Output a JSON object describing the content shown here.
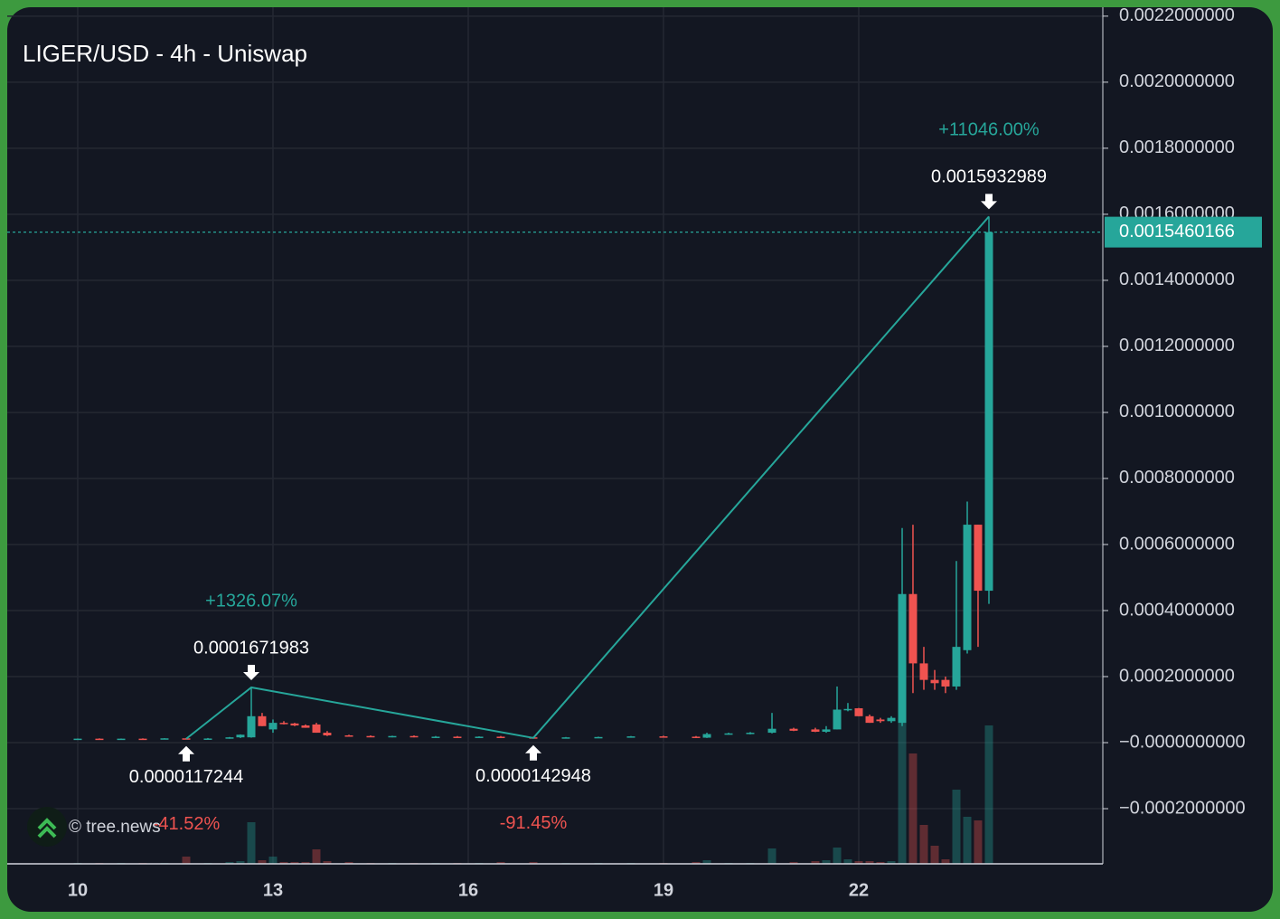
{
  "chart_data": {
    "type": "candlestick",
    "title": "LIGER/USD - 4h - Uniswap",
    "watermark": "© tree.news",
    "xlim": [
      8.917,
      25.75
    ],
    "xticks": [
      10,
      13,
      16,
      19,
      22
    ],
    "ylim": [
      -0.000367,
      0.002227
    ],
    "yticks": [
      {
        "value": 0.0022,
        "label": "0.0022000000"
      },
      {
        "value": 0.002,
        "label": "0.0020000000"
      },
      {
        "value": 0.0018,
        "label": "0.0018000000"
      },
      {
        "value": 0.0016,
        "label": "0.0016000000"
      },
      {
        "value": 0.0014,
        "label": "0.0014000000"
      },
      {
        "value": 0.0012,
        "label": "0.0012000000"
      },
      {
        "value": 0.001,
        "label": "0.0010000000"
      },
      {
        "value": 0.0008,
        "label": "0.0008000000"
      },
      {
        "value": 0.0006,
        "label": "0.0006000000"
      },
      {
        "value": 0.0004,
        "label": "0.0004000000"
      },
      {
        "value": 0.0002,
        "label": "0.0002000000"
      },
      {
        "value": 0,
        "label": "−0.0000000000"
      },
      {
        "value": -0.0002,
        "label": "−0.0002000000"
      }
    ],
    "grid": true,
    "up_color": "#26a69a",
    "down_color": "#ef5350",
    "last_price": 0.0015460166,
    "candles": [
      {
        "x": 10.0,
        "o": 1.15e-05,
        "h": 1.25e-05,
        "l": 1.1e-05,
        "c": 1.2e-05,
        "v": 1
      },
      {
        "x": 10.333,
        "o": 1.2e-05,
        "h": 1.3e-05,
        "l": 1.1e-05,
        "c": 1.15e-05,
        "v": 1
      },
      {
        "x": 10.667,
        "o": 1.15e-05,
        "h": 1.25e-05,
        "l": 1.1e-05,
        "c": 1.2e-05,
        "v": 1
      },
      {
        "x": 11.0,
        "o": 1.2e-05,
        "h": 1.3e-05,
        "l": 1.1e-05,
        "c": 1.18e-05,
        "v": 1
      },
      {
        "x": 11.333,
        "o": 1.18e-05,
        "h": 1.35e-05,
        "l": 1.1e-05,
        "c": 1.3e-05,
        "v": 1
      },
      {
        "x": 11.667,
        "o": 1.3e-05,
        "h": 1.4e-05,
        "l": 1.17244e-05,
        "c": 1.2e-05,
        "v": 8
      },
      {
        "x": 12.0,
        "o": 1.2e-05,
        "h": 1.4e-05,
        "l": 1.18e-05,
        "c": 1.25e-05,
        "v": 1
      },
      {
        "x": 12.333,
        "o": 1.2e-05,
        "h": 1.7e-05,
        "l": 1.18e-05,
        "c": 1.6e-05,
        "v": 2
      },
      {
        "x": 12.5,
        "o": 1.6e-05,
        "h": 2.5e-05,
        "l": 1.4e-05,
        "c": 2.4e-05,
        "v": 3
      },
      {
        "x": 12.667,
        "o": 1.6e-05,
        "h": 0.0001671983,
        "l": 1.5e-05,
        "c": 8e-05,
        "v": 46
      },
      {
        "x": 12.833,
        "o": 8e-05,
        "h": 9e-05,
        "l": 5e-05,
        "c": 5e-05,
        "v": 4
      },
      {
        "x": 13.0,
        "o": 4e-05,
        "h": 7e-05,
        "l": 3e-05,
        "c": 6e-05,
        "v": 8
      },
      {
        "x": 13.167,
        "o": 6e-05,
        "h": 6.5e-05,
        "l": 5.5e-05,
        "c": 5.8e-05,
        "v": 2
      },
      {
        "x": 13.333,
        "o": 5.8e-05,
        "h": 6e-05,
        "l": 5e-05,
        "c": 5.2e-05,
        "v": 2
      },
      {
        "x": 13.5,
        "o": 5.2e-05,
        "h": 5.5e-05,
        "l": 4.5e-05,
        "c": 4.5e-05,
        "v": 2
      },
      {
        "x": 13.667,
        "o": 5.5e-05,
        "h": 6e-05,
        "l": 3e-05,
        "c": 3e-05,
        "v": 16
      },
      {
        "x": 13.833,
        "o": 3e-05,
        "h": 3.5e-05,
        "l": 2e-05,
        "c": 2.2e-05,
        "v": 3
      },
      {
        "x": 14.167,
        "o": 2.2e-05,
        "h": 2.4e-05,
        "l": 1.8e-05,
        "c": 2e-05,
        "v": 2
      },
      {
        "x": 14.5,
        "o": 2e-05,
        "h": 2.2e-05,
        "l": 1.7e-05,
        "c": 1.8e-05,
        "v": 1
      },
      {
        "x": 14.833,
        "o": 1.8e-05,
        "h": 2.1e-05,
        "l": 1.6e-05,
        "c": 2e-05,
        "v": 1
      },
      {
        "x": 15.167,
        "o": 2e-05,
        "h": 2.2e-05,
        "l": 1.6e-05,
        "c": 1.7e-05,
        "v": 1
      },
      {
        "x": 15.5,
        "o": 1.7e-05,
        "h": 2e-05,
        "l": 1.5e-05,
        "c": 1.8e-05,
        "v": 1
      },
      {
        "x": 15.833,
        "o": 1.8e-05,
        "h": 2e-05,
        "l": 1.5e-05,
        "c": 1.6e-05,
        "v": 1
      },
      {
        "x": 16.167,
        "o": 1.6e-05,
        "h": 1.9e-05,
        "l": 1.5e-05,
        "c": 1.8e-05,
        "v": 1
      },
      {
        "x": 16.5,
        "o": 1.8e-05,
        "h": 2e-05,
        "l": 1.5e-05,
        "c": 1.6e-05,
        "v": 2
      },
      {
        "x": 17.0,
        "o": 1.6e-05,
        "h": 1.8e-05,
        "l": 1.42948e-05,
        "c": 1.5e-05,
        "v": 2
      },
      {
        "x": 17.5,
        "o": 1.5e-05,
        "h": 1.7e-05,
        "l": 1.4e-05,
        "c": 1.6e-05,
        "v": 1
      },
      {
        "x": 18.0,
        "o": 1.6e-05,
        "h": 1.8e-05,
        "l": 1.5e-05,
        "c": 1.7e-05,
        "v": 1
      },
      {
        "x": 18.5,
        "o": 1.7e-05,
        "h": 2e-05,
        "l": 1.5e-05,
        "c": 1.9e-05,
        "v": 1
      },
      {
        "x": 19.0,
        "o": 1.9e-05,
        "h": 2.1e-05,
        "l": 1.6e-05,
        "c": 1.8e-05,
        "v": 1
      },
      {
        "x": 19.5,
        "o": 1.8e-05,
        "h": 2e-05,
        "l": 1.4e-05,
        "c": 1.5e-05,
        "v": 2
      },
      {
        "x": 19.667,
        "o": 1.5e-05,
        "h": 3e-05,
        "l": 1.4e-05,
        "c": 2.6e-05,
        "v": 4
      },
      {
        "x": 20.0,
        "o": 2.6e-05,
        "h": 3e-05,
        "l": 2.4e-05,
        "c": 2.8e-05,
        "v": 1
      },
      {
        "x": 20.333,
        "o": 2.8e-05,
        "h": 3.2e-05,
        "l": 2.5e-05,
        "c": 3e-05,
        "v": 1
      },
      {
        "x": 20.667,
        "o": 3e-05,
        "h": 9e-05,
        "l": 2.8e-05,
        "c": 4.2e-05,
        "v": 17
      },
      {
        "x": 21.0,
        "o": 4.2e-05,
        "h": 4.5e-05,
        "l": 3.5e-05,
        "c": 3.6e-05,
        "v": 2
      },
      {
        "x": 21.333,
        "o": 4e-05,
        "h": 4.5e-05,
        "l": 3.2e-05,
        "c": 3.3e-05,
        "v": 3
      },
      {
        "x": 21.5,
        "o": 3.3e-05,
        "h": 5e-05,
        "l": 3e-05,
        "c": 4e-05,
        "v": 4
      },
      {
        "x": 21.667,
        "o": 4e-05,
        "h": 0.00017,
        "l": 4e-05,
        "c": 0.0001,
        "v": 18
      },
      {
        "x": 21.833,
        "o": 0.0001,
        "h": 0.00012,
        "l": 9.5e-05,
        "c": 0.000102,
        "v": 5
      },
      {
        "x": 22.0,
        "o": 0.000104,
        "h": 0.000105,
        "l": 8e-05,
        "c": 8e-05,
        "v": 3
      },
      {
        "x": 22.167,
        "o": 8e-05,
        "h": 8.5e-05,
        "l": 6e-05,
        "c": 6e-05,
        "v": 3
      },
      {
        "x": 22.333,
        "o": 7e-05,
        "h": 7.5e-05,
        "l": 6e-05,
        "c": 6.5e-05,
        "v": 2
      },
      {
        "x": 22.5,
        "o": 6.5e-05,
        "h": 8e-05,
        "l": 6e-05,
        "c": 7.5e-05,
        "v": 3
      },
      {
        "x": 22.667,
        "o": 6e-05,
        "h": 0.00065,
        "l": 5e-05,
        "c": 0.00045,
        "v": 160
      },
      {
        "x": 22.833,
        "o": 0.00045,
        "h": 0.00066,
        "l": 0.00015,
        "c": 0.00024,
        "v": 122
      },
      {
        "x": 23.0,
        "o": 0.00024,
        "h": 0.00029,
        "l": 0.00016,
        "c": 0.00019,
        "v": 43
      },
      {
        "x": 23.167,
        "o": 0.00019,
        "h": 0.00022,
        "l": 0.00016,
        "c": 0.00018,
        "v": 20
      },
      {
        "x": 23.333,
        "o": 0.00019,
        "h": 0.0002,
        "l": 0.00015,
        "c": 0.00017,
        "v": 5
      },
      {
        "x": 23.5,
        "o": 0.00017,
        "h": 0.00055,
        "l": 0.00016,
        "c": 0.00029,
        "v": 82
      },
      {
        "x": 23.667,
        "o": 0.00028,
        "h": 0.00073,
        "l": 0.00027,
        "c": 0.00066,
        "v": 52
      },
      {
        "x": 23.833,
        "o": 0.00066,
        "h": 0.00066,
        "l": 0.00029,
        "c": 0.00046,
        "v": 48
      },
      {
        "x": 24.0,
        "o": 0.00046,
        "h": 0.0015932989,
        "l": 0.00042,
        "c": 0.0015460166,
        "v": 153
      }
    ],
    "pivots": [
      {
        "x": 11.667,
        "price": 1.17244e-05,
        "change": -41.52,
        "change_label": "-41.52%"
      },
      {
        "x": 12.667,
        "price": 0.0001671983,
        "change": 1326.07,
        "change_label": "+1326.07%"
      },
      {
        "x": 17.0,
        "price": 1.42948e-05,
        "change": -91.45,
        "change_label": "-91.45%"
      },
      {
        "x": 24.0,
        "price": 0.0015932989,
        "change": 11046,
        "change_label": "+11046.00%"
      }
    ]
  }
}
